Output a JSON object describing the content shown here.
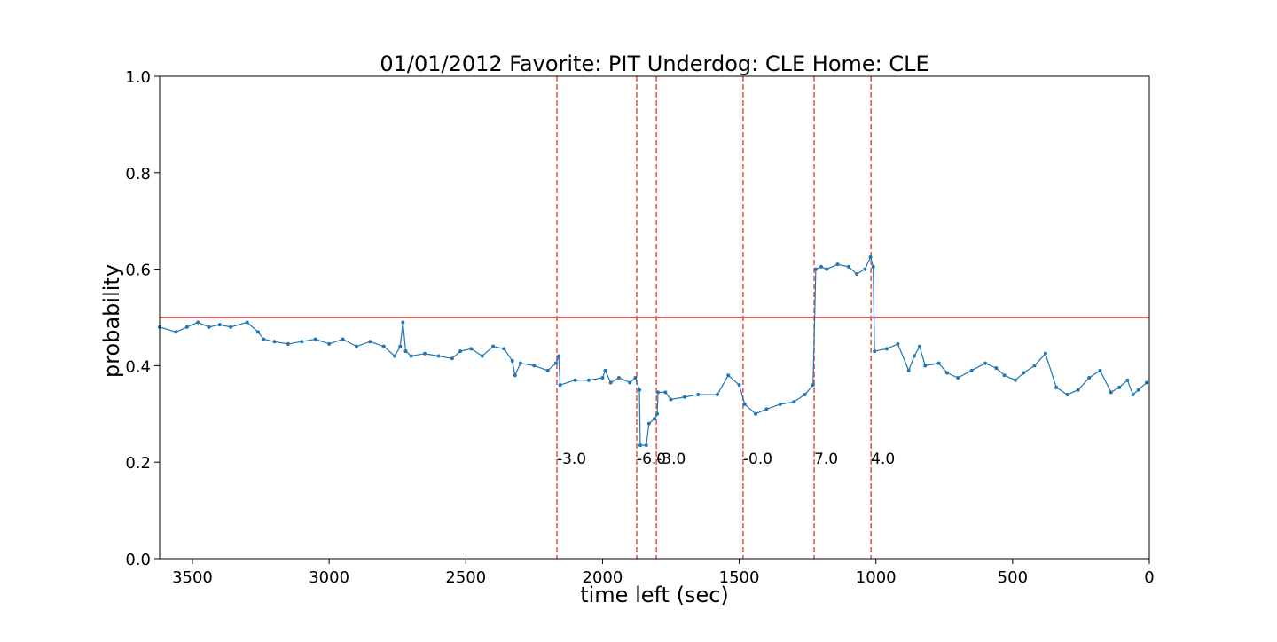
{
  "chart_data": {
    "type": "line",
    "title": "01/01/2012 Favorite: PIT Underdog: CLE Home: CLE",
    "xlabel": "time left (sec)",
    "ylabel": "probability",
    "xlim": [
      3620,
      0
    ],
    "ylim": [
      0,
      1
    ],
    "xticks": [
      3500,
      3000,
      2500,
      2000,
      1500,
      1000,
      500,
      0
    ],
    "yticks": [
      {
        "value": 0,
        "label": "0.0"
      },
      0.2,
      0.4,
      0.6,
      0.8,
      {
        "value": 1,
        "label": "1.0"
      }
    ],
    "x": [
      3620,
      3560,
      3520,
      3480,
      3440,
      3400,
      3360,
      3300,
      3260,
      3240,
      3200,
      3150,
      3100,
      3050,
      3000,
      2950,
      2900,
      2850,
      2800,
      2760,
      2740,
      2730,
      2720,
      2700,
      2650,
      2600,
      2550,
      2520,
      2480,
      2440,
      2400,
      2360,
      2330,
      2320,
      2300,
      2250,
      2200,
      2170,
      2160,
      2155,
      2100,
      2050,
      2000,
      1990,
      1970,
      1940,
      1900,
      1880,
      1865,
      1862,
      1840,
      1830,
      1810,
      1800,
      1797,
      1770,
      1750,
      1700,
      1650,
      1580,
      1540,
      1500,
      1480,
      1440,
      1400,
      1350,
      1300,
      1260,
      1230,
      1220,
      1200,
      1180,
      1140,
      1100,
      1070,
      1040,
      1020,
      1010,
      1005,
      960,
      920,
      880,
      860,
      840,
      820,
      770,
      740,
      700,
      650,
      600,
      560,
      530,
      490,
      460,
      420,
      380,
      340,
      300,
      260,
      220,
      180,
      140,
      110,
      80,
      60,
      40,
      10
    ],
    "series": [
      {
        "name": "probability",
        "color": "#1f77b4",
        "values": [
          0.48,
          0.47,
          0.48,
          0.49,
          0.48,
          0.485,
          0.48,
          0.49,
          0.47,
          0.455,
          0.45,
          0.445,
          0.45,
          0.455,
          0.445,
          0.455,
          0.44,
          0.45,
          0.44,
          0.42,
          0.44,
          0.49,
          0.43,
          0.42,
          0.425,
          0.42,
          0.415,
          0.43,
          0.435,
          0.42,
          0.44,
          0.435,
          0.41,
          0.38,
          0.405,
          0.4,
          0.39,
          0.405,
          0.42,
          0.36,
          0.37,
          0.37,
          0.375,
          0.39,
          0.365,
          0.375,
          0.365,
          0.375,
          0.35,
          0.235,
          0.235,
          0.28,
          0.29,
          0.3,
          0.345,
          0.345,
          0.33,
          0.335,
          0.34,
          0.34,
          0.38,
          0.36,
          0.32,
          0.3,
          0.31,
          0.32,
          0.325,
          0.34,
          0.36,
          0.6,
          0.605,
          0.6,
          0.61,
          0.605,
          0.59,
          0.6,
          0.625,
          0.605,
          0.43,
          0.435,
          0.445,
          0.39,
          0.42,
          0.44,
          0.4,
          0.405,
          0.385,
          0.375,
          0.39,
          0.405,
          0.395,
          0.38,
          0.37,
          0.385,
          0.4,
          0.425,
          0.355,
          0.34,
          0.35,
          0.375,
          0.39,
          0.345,
          0.355,
          0.37,
          0.34,
          0.35,
          0.365
        ]
      }
    ],
    "hline": {
      "value": 0.5,
      "color": "#d62728"
    },
    "event_color": "#e8503c",
    "event_label_y": 0.2,
    "events": [
      {
        "x": 2167,
        "label": "-3.0"
      },
      {
        "x": 1875,
        "label": "-6.0"
      },
      {
        "x": 1803,
        "label": "-3.0"
      },
      {
        "x": 1486,
        "label": "-0.0"
      },
      {
        "x": 1226,
        "label": "7.0"
      },
      {
        "x": 1018,
        "label": "4.0"
      }
    ]
  }
}
